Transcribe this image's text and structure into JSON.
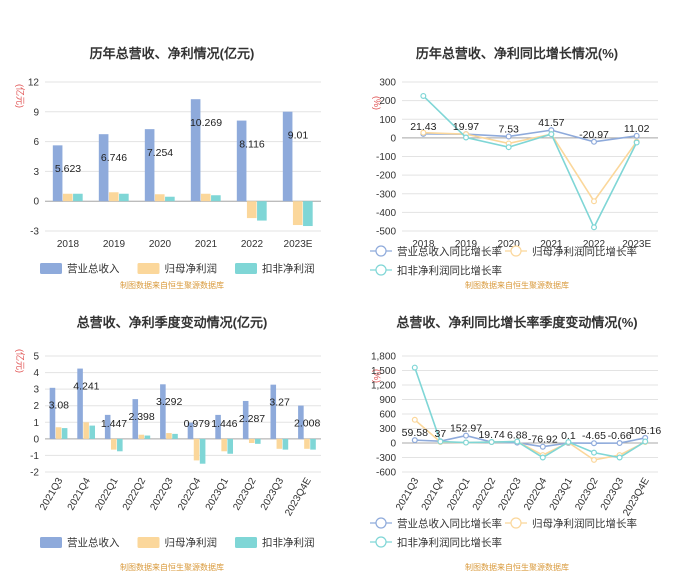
{
  "colors": {
    "revenue": "#8eaadb",
    "parent": "#fbd79b",
    "deducted": "#7fd6d6",
    "axis_unit": "#e05252",
    "source": "#d99a3c",
    "grid": "#e3e3e3",
    "text": "#333333"
  },
  "chart_data": [
    {
      "type": "bar",
      "title": "历年总营收、净利情况(亿元)",
      "y_unit": "(亿元)",
      "categories": [
        "2018",
        "2019",
        "2020",
        "2021",
        "2022",
        "2023E"
      ],
      "yticks": [
        "12",
        "9",
        "6",
        "3",
        "0",
        "-3"
      ],
      "ylim": [
        -3,
        12
      ],
      "series": [
        {
          "name": "营业总收入",
          "color": "#8eaadb",
          "values": [
            5.623,
            6.746,
            7.254,
            10.269,
            8.116,
            9.01
          ]
        },
        {
          "name": "归母净利润",
          "color": "#fbd79b",
          "values": [
            0.75,
            0.9,
            0.7,
            0.75,
            -1.7,
            -2.4
          ]
        },
        {
          "name": "扣非净利润",
          "color": "#7fd6d6",
          "values": [
            0.75,
            0.75,
            0.45,
            0.6,
            -1.95,
            -2.5
          ]
        }
      ],
      "data_labels": [
        "5.623",
        "6.746",
        "7.254",
        "10.269",
        "8.116",
        "9.01"
      ],
      "grid": true,
      "legend": "bottom",
      "source": "制图数据来自恒生聚源数据库"
    },
    {
      "type": "line",
      "title": "历年总营收、净利同比增长情况(%)",
      "y_unit": "(%)",
      "categories": [
        "2018",
        "2019",
        "2020",
        "2021",
        "2022",
        "2023E"
      ],
      "yticks": [
        "300",
        "200",
        "100",
        "0",
        "-100",
        "-200",
        "-300",
        "-400",
        "-500"
      ],
      "ylim": [
        -500,
        300
      ],
      "series": [
        {
          "name": "营业总收入同比增长率",
          "color": "#8eaadb",
          "values": [
            21.43,
            19.97,
            7.53,
            41.57,
            -20.97,
            11.02
          ]
        },
        {
          "name": "归母净利润同比增长率",
          "color": "#fbd79b",
          "values": [
            28,
            20,
            -30,
            20,
            -340,
            -20
          ]
        },
        {
          "name": "扣非净利润同比增长率",
          "color": "#7fd6d6",
          "values": [
            225,
            2,
            -50,
            20,
            -480,
            -25
          ]
        }
      ],
      "data_labels": [
        "21.43",
        "19.97",
        "7.53",
        "41.57",
        "-20.97",
        "11.02"
      ],
      "grid": true,
      "legend": "bottom",
      "source": "制图数据来自恒生聚源数据库"
    },
    {
      "type": "bar",
      "title": "总营收、净利季度变动情况(亿元)",
      "y_unit": "(亿元)",
      "categories": [
        "2021Q3",
        "2021Q4",
        "2022Q1",
        "2022Q2",
        "2022Q3",
        "2022Q4",
        "2023Q1",
        "2023Q2",
        "2023Q3",
        "2023Q4E"
      ],
      "yticks": [
        "5",
        "4",
        "3",
        "2",
        "1",
        "0",
        "-1",
        "-2"
      ],
      "ylim": [
        -2,
        5
      ],
      "series": [
        {
          "name": "营业总收入",
          "color": "#8eaadb",
          "values": [
            3.08,
            4.241,
            1.447,
            2.398,
            3.292,
            0.979,
            1.446,
            2.287,
            3.27,
            2.008
          ]
        },
        {
          "name": "归母净利润",
          "color": "#fbd79b",
          "values": [
            0.7,
            1.0,
            -0.65,
            0.25,
            0.35,
            -1.3,
            -0.75,
            -0.25,
            -0.6,
            -0.6
          ]
        },
        {
          "name": "扣非净利润",
          "color": "#7fd6d6",
          "values": [
            0.65,
            0.8,
            -0.75,
            0.2,
            0.3,
            -1.5,
            -0.9,
            -0.3,
            -0.65,
            -0.65
          ]
        }
      ],
      "data_labels": [
        "3.08",
        "4.241",
        "1.447",
        "2.398",
        "3.292",
        "0.979",
        "1.446",
        "2.287",
        "3.27",
        "2.008"
      ],
      "grid": true,
      "legend": "bottom",
      "source": "制图数据来自恒生聚源数据库"
    },
    {
      "type": "line",
      "title": "总营收、净利同比增长率季度变动情况(%)",
      "y_unit": "(%)",
      "categories": [
        "2021Q3",
        "2021Q4",
        "2022Q1",
        "2022Q2",
        "2022Q3",
        "2022Q4",
        "2023Q1",
        "2023Q2",
        "2023Q3",
        "2023Q4E"
      ],
      "yticks": [
        "1,800",
        "1,500",
        "1,200",
        "900",
        "600",
        "300",
        "0",
        "-300",
        "-600"
      ],
      "ylim": [
        -600,
        1800
      ],
      "series": [
        {
          "name": "营业总收入同比增长率",
          "color": "#8eaadb",
          "values": [
            59.58,
            37,
            152.97,
            19.74,
            6.88,
            -76.92,
            0.1,
            -4.65,
            -0.66,
            105.16
          ]
        },
        {
          "name": "归母净利润同比增长率",
          "color": "#fbd79b",
          "values": [
            480,
            20,
            10,
            20,
            30,
            -250,
            10,
            -350,
            -250,
            20
          ]
        },
        {
          "name": "扣非净利润同比增长率",
          "color": "#7fd6d6",
          "values": [
            1560,
            30,
            10,
            20,
            30,
            -300,
            20,
            -200,
            -300,
            30
          ]
        }
      ],
      "data_labels": [
        "59.58",
        "37",
        "152.97",
        "19.74",
        "6.88",
        "-76.92",
        "0.1",
        "-4.65",
        "-0.66",
        "105.16"
      ],
      "grid": true,
      "legend": "bottom",
      "source": "制图数据来自恒生聚源数据库"
    }
  ]
}
